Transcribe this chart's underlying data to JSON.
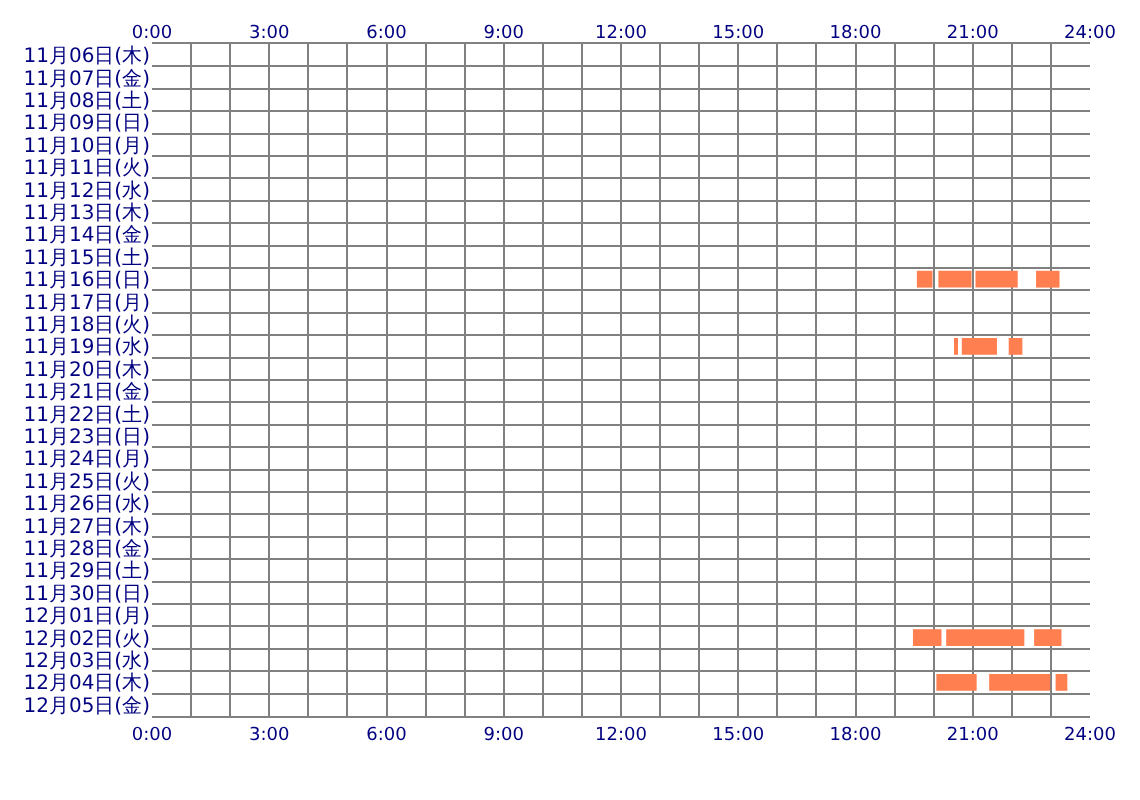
{
  "chart_data": {
    "type": "bar",
    "orientation": "horizontal",
    "categories": [
      "11月06日(木)",
      "11月07日(金)",
      "11月08日(土)",
      "11月09日(日)",
      "11月10日(月)",
      "11月11日(火)",
      "11月12日(水)",
      "11月13日(木)",
      "11月14日(金)",
      "11月15日(土)",
      "11月16日(日)",
      "11月17日(月)",
      "11月18日(火)",
      "11月19日(水)",
      "11月20日(木)",
      "11月21日(金)",
      "11月22日(土)",
      "11月23日(日)",
      "11月24日(月)",
      "11月25日(火)",
      "11月26日(水)",
      "11月27日(木)",
      "11月28日(金)",
      "11月29日(土)",
      "11月30日(日)",
      "12月01日(月)",
      "12月02日(火)",
      "12月03日(水)",
      "12月04日(木)",
      "12月05日(金)"
    ],
    "series": [
      {
        "color": "#ff7f50",
        "values": [
          null,
          null,
          null,
          null,
          null,
          null,
          null,
          null,
          null,
          null,
          0.4,
          null,
          null,
          0.08,
          null,
          null,
          null,
          null,
          null,
          null,
          null,
          null,
          null,
          null,
          null,
          null,
          0.73,
          null,
          1.03,
          null
        ],
        "base": [
          null,
          null,
          null,
          null,
          null,
          null,
          null,
          null,
          null,
          null,
          19.57,
          null,
          null,
          20.52,
          null,
          null,
          null,
          null,
          null,
          null,
          null,
          null,
          null,
          null,
          null,
          null,
          19.47,
          null,
          20.07,
          null
        ]
      },
      {
        "color": "#ff7f50",
        "values": [
          null,
          null,
          null,
          null,
          null,
          null,
          null,
          null,
          null,
          null,
          0.85,
          null,
          null,
          0.9,
          null,
          null,
          null,
          null,
          null,
          null,
          null,
          null,
          null,
          null,
          null,
          null,
          2.0,
          null,
          1.56,
          null
        ],
        "base": [
          null,
          null,
          null,
          null,
          null,
          null,
          null,
          null,
          null,
          null,
          20.12,
          null,
          null,
          20.72,
          null,
          null,
          null,
          null,
          null,
          null,
          null,
          null,
          null,
          null,
          null,
          null,
          20.32,
          null,
          21.42,
          null
        ]
      },
      {
        "color": "#ff7f50",
        "values": [
          null,
          null,
          null,
          null,
          null,
          null,
          null,
          null,
          null,
          null,
          1.08,
          null,
          null,
          0.35,
          null,
          null,
          null,
          null,
          null,
          null,
          null,
          null,
          null,
          null,
          null,
          null,
          0.7,
          null,
          0.3,
          null
        ],
        "base": [
          null,
          null,
          null,
          null,
          null,
          null,
          null,
          null,
          null,
          null,
          21.07,
          null,
          null,
          21.92,
          null,
          null,
          null,
          null,
          null,
          null,
          null,
          null,
          null,
          null,
          null,
          null,
          22.57,
          null,
          23.12,
          null
        ]
      },
      {
        "color": "#ff7f50",
        "values": [
          null,
          null,
          null,
          null,
          null,
          null,
          null,
          null,
          null,
          null,
          0.6,
          null,
          null,
          null,
          null,
          null,
          null,
          null,
          null,
          null,
          null,
          null,
          null,
          null,
          null,
          null,
          null,
          null,
          null,
          null
        ],
        "base": [
          null,
          null,
          null,
          null,
          null,
          null,
          null,
          null,
          null,
          null,
          22.62,
          null,
          null,
          null,
          null,
          null,
          null,
          null,
          null,
          null,
          null,
          null,
          null,
          null,
          null,
          null,
          null,
          null,
          null,
          null
        ]
      }
    ],
    "xlim": [
      0,
      24
    ],
    "xticks": [
      {
        "value": 0,
        "label": "0:00"
      },
      {
        "value": 1,
        "label": null
      },
      {
        "value": 2,
        "label": null
      },
      {
        "value": 3,
        "label": "3:00"
      },
      {
        "value": 4,
        "label": null
      },
      {
        "value": 5,
        "label": null
      },
      {
        "value": 6,
        "label": "6:00"
      },
      {
        "value": 7,
        "label": null
      },
      {
        "value": 8,
        "label": null
      },
      {
        "value": 9,
        "label": "9:00"
      },
      {
        "value": 10,
        "label": null
      },
      {
        "value": 11,
        "label": null
      },
      {
        "value": 12,
        "label": "12:00"
      },
      {
        "value": 13,
        "label": null
      },
      {
        "value": 14,
        "label": null
      },
      {
        "value": 15,
        "label": "15:00"
      },
      {
        "value": 16,
        "label": null
      },
      {
        "value": 17,
        "label": null
      },
      {
        "value": 18,
        "label": "18:00"
      },
      {
        "value": 19,
        "label": null
      },
      {
        "value": 20,
        "label": null
      },
      {
        "value": 21,
        "label": "21:00"
      },
      {
        "value": 22,
        "label": null
      },
      {
        "value": 23,
        "label": null
      },
      {
        "value": 24,
        "label": "24:00"
      }
    ],
    "x2lim": [
      0,
      24
    ],
    "x2ticks": [
      {
        "value": 0,
        "label": "0:00"
      },
      {
        "value": 1,
        "label": null
      },
      {
        "value": 2,
        "label": null
      },
      {
        "value": 3,
        "label": "3:00"
      },
      {
        "value": 4,
        "label": null
      },
      {
        "value": 5,
        "label": null
      },
      {
        "value": 6,
        "label": "6:00"
      },
      {
        "value": 7,
        "label": null
      },
      {
        "value": 8,
        "label": null
      },
      {
        "value": 9,
        "label": "9:00"
      },
      {
        "value": 10,
        "label": null
      },
      {
        "value": 11,
        "label": null
      },
      {
        "value": 12,
        "label": "12:00"
      },
      {
        "value": 13,
        "label": null
      },
      {
        "value": 14,
        "label": null
      },
      {
        "value": 15,
        "label": "15:00"
      },
      {
        "value": 16,
        "label": null
      },
      {
        "value": 17,
        "label": null
      },
      {
        "value": 18,
        "label": "18:00"
      },
      {
        "value": 19,
        "label": null
      },
      {
        "value": 20,
        "label": null
      },
      {
        "value": 21,
        "label": "21:00"
      },
      {
        "value": 22,
        "label": null
      },
      {
        "value": 23,
        "label": null
      },
      {
        "value": 24,
        "label": "24:00"
      }
    ],
    "grid": true
  }
}
